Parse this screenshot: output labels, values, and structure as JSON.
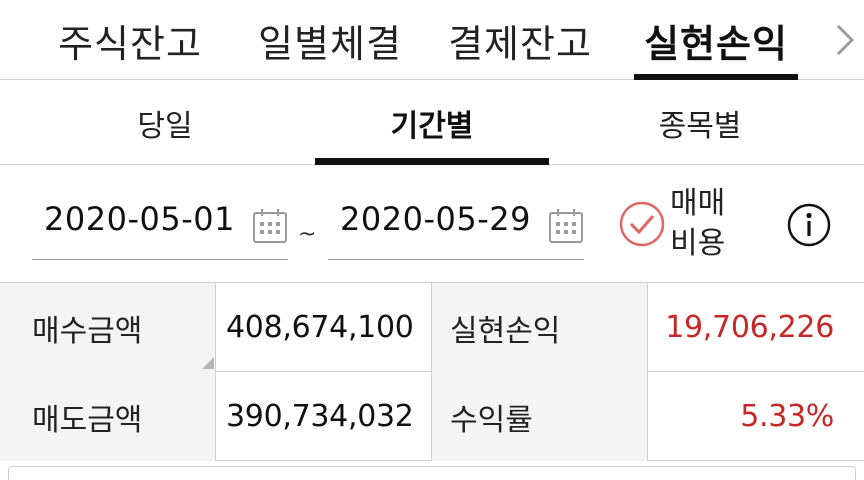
{
  "top_tabs": [
    "주식잔고",
    "일별체결",
    "결제잔고",
    "실현손익"
  ],
  "top_tabs_active": "실현손익",
  "sub_tabs": [
    "당일",
    "기간별",
    "종목별"
  ],
  "sub_tabs_active": "기간별",
  "date_range": {
    "start": "2020-05-01",
    "separator": "~",
    "end": "2020-05-29"
  },
  "fee_option": {
    "label_line1": "매매",
    "label_line2": "비용",
    "checked": true
  },
  "summary": {
    "buy_amount_label": "매수금액",
    "buy_amount_value": "408,674,100",
    "sell_amount_label": "매도금액",
    "sell_amount_value": "390,734,032",
    "realized_pl_label": "실현손익",
    "realized_pl_value": "19,706,226",
    "return_rate_label": "수익률",
    "return_rate_value": "5.33%"
  },
  "colors": {
    "positive": "#c62828",
    "active_indicator": "#111111",
    "check_accent": "#e06666"
  }
}
